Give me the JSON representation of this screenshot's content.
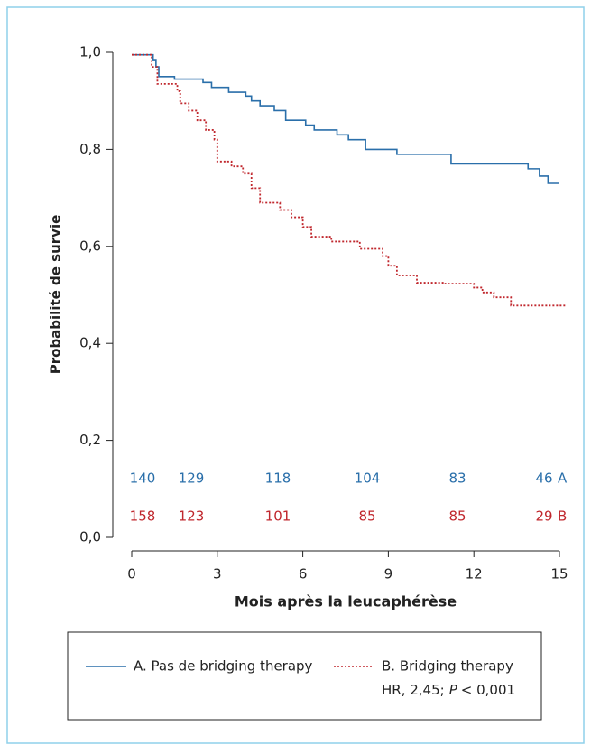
{
  "chart_data": {
    "type": "step",
    "y_label": "Probabilité de survie",
    "x_label": "Mois après la leucaphérèse",
    "xlim": [
      0,
      15
    ],
    "ylim": [
      0,
      1
    ],
    "xticks": [
      0,
      3,
      6,
      9,
      12,
      15
    ],
    "yticks": [
      {
        "value": 0,
        "label": "0,0"
      },
      {
        "value": 0.2,
        "label": "0,2"
      },
      {
        "value": 0.4,
        "label": "0,4"
      },
      {
        "value": 0.6,
        "label": "0,6"
      },
      {
        "value": 0.8,
        "label": "0,8"
      },
      {
        "value": 1,
        "label": "1,0"
      }
    ],
    "series": [
      {
        "name": "A. Pas de bridging therapy",
        "color": "#2a6faa",
        "style": "solid",
        "x": [
          0,
          0.75,
          0.85,
          0.95,
          1.5,
          2.5,
          2.8,
          3.4,
          4.0,
          4.2,
          4.5,
          5.0,
          5.4,
          6.1,
          6.4,
          7.2,
          7.6,
          8.2,
          9.3,
          11.2,
          13.9,
          14.3,
          14.6,
          15.0
        ],
        "values": [
          0.995,
          0.985,
          0.97,
          0.95,
          0.945,
          0.938,
          0.928,
          0.918,
          0.91,
          0.9,
          0.89,
          0.88,
          0.86,
          0.85,
          0.84,
          0.83,
          0.82,
          0.8,
          0.79,
          0.77,
          0.76,
          0.745,
          0.73,
          0.73
        ]
      },
      {
        "name": "B. Bridging therapy",
        "color": "#c0272d",
        "style": "dotted",
        "x": [
          0,
          0.7,
          0.9,
          1.6,
          1.7,
          2.0,
          2.3,
          2.6,
          2.9,
          3.0,
          3.5,
          3.9,
          4.2,
          4.5,
          5.2,
          5.6,
          6.0,
          6.3,
          7.0,
          8.0,
          8.8,
          9.0,
          9.3,
          10.0,
          11.0,
          12.0,
          12.3,
          12.7,
          13.3,
          15.2
        ],
        "values": [
          0.995,
          0.97,
          0.935,
          0.92,
          0.895,
          0.88,
          0.86,
          0.84,
          0.82,
          0.775,
          0.765,
          0.75,
          0.72,
          0.69,
          0.675,
          0.66,
          0.64,
          0.62,
          0.61,
          0.595,
          0.58,
          0.56,
          0.54,
          0.525,
          0.523,
          0.515,
          0.505,
          0.495,
          0.478,
          0.478
        ]
      }
    ],
    "at_risk": [
      {
        "name": "A",
        "color": "#2a6faa",
        "values": [
          140,
          129,
          118,
          104,
          83,
          46
        ]
      },
      {
        "name": "B",
        "color": "#c0272d",
        "values": [
          158,
          123,
          101,
          85,
          85,
          29
        ]
      }
    ],
    "annotation": {
      "prefix": "HR, 2,45;",
      "italic": "P",
      "suffix": "< 0,001"
    }
  }
}
